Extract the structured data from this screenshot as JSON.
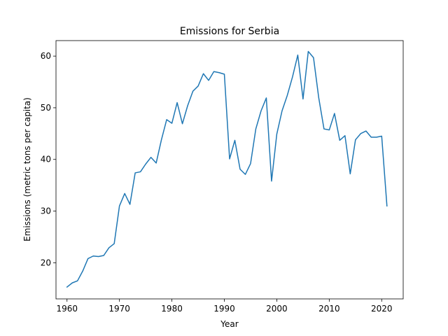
{
  "chart_data": {
    "type": "line",
    "title": "Emissions for Serbia",
    "xlabel": "Year",
    "ylabel": "Emissions (metric tons per capita)",
    "xlim": [
      1957.9,
      2024.1
    ],
    "ylim": [
      13.0,
      63.0
    ],
    "xticks": [
      1960,
      1970,
      1980,
      1990,
      2000,
      2010,
      2020
    ],
    "yticks": [
      20,
      30,
      40,
      50,
      60
    ],
    "grid": false,
    "legend": "none",
    "series": [
      {
        "color": "#1f77b4",
        "x": [
          1960,
          1961,
          1962,
          1963,
          1964,
          1965,
          1966,
          1967,
          1968,
          1969,
          1970,
          1971,
          1972,
          1973,
          1974,
          1975,
          1976,
          1977,
          1978,
          1979,
          1980,
          1981,
          1982,
          1983,
          1984,
          1985,
          1986,
          1987,
          1988,
          1989,
          1990,
          1991,
          1992,
          1993,
          1994,
          1995,
          1996,
          1997,
          1998,
          1999,
          2000,
          2001,
          2002,
          2003,
          2004,
          2005,
          2006,
          2007,
          2008,
          2009,
          2010,
          2011,
          2012,
          2013,
          2014,
          2015,
          2016,
          2017,
          2018,
          2019,
          2020,
          2021
        ],
        "y": [
          15.3,
          16.1,
          16.5,
          18.4,
          20.8,
          21.3,
          21.2,
          21.4,
          22.9,
          23.7,
          31.0,
          33.4,
          31.3,
          37.4,
          37.6,
          39.1,
          40.4,
          39.3,
          43.8,
          47.7,
          47.0,
          51.0,
          46.9,
          50.4,
          53.2,
          54.2,
          56.6,
          55.3,
          57.0,
          56.8,
          56.5,
          40.1,
          43.7,
          38.1,
          37.1,
          39.2,
          45.9,
          49.4,
          51.9,
          35.8,
          44.9,
          49.4,
          52.4,
          56.0,
          60.2,
          51.7,
          60.9,
          59.7,
          51.9,
          45.9,
          45.7,
          48.9,
          43.7,
          44.6,
          37.2,
          43.8,
          45.0,
          45.5,
          44.3,
          44.3,
          44.5,
          31.0
        ]
      }
    ]
  }
}
